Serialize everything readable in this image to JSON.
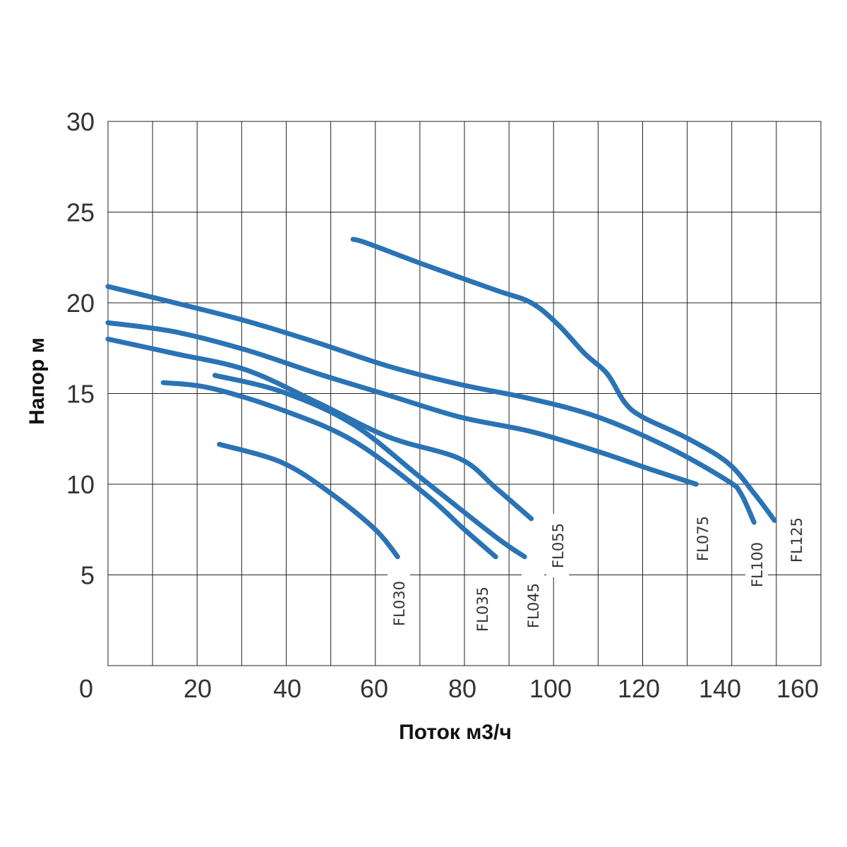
{
  "chart_data": {
    "type": "line",
    "xlabel": "Поток м3/ч",
    "ylabel": "Напор м",
    "xlim": [
      0,
      160
    ],
    "ylim": [
      0,
      30
    ],
    "x_ticks": [
      "0",
      "20",
      "40",
      "60",
      "80",
      "100",
      "120",
      "140",
      "160"
    ],
    "y_ticks": [
      "5",
      "10",
      "15",
      "20",
      "25",
      "30"
    ],
    "grid": true,
    "line_color": "#2a73b5",
    "series": [
      {
        "name": "FL030",
        "points": [
          [
            25,
            12.2
          ],
          [
            39,
            11.2
          ],
          [
            50,
            9.5
          ],
          [
            60,
            7.5
          ],
          [
            65,
            6.0
          ]
        ]
      },
      {
        "name": "FL035",
        "points": [
          [
            12.4,
            15.6
          ],
          [
            23,
            15.3
          ],
          [
            39,
            14.1
          ],
          [
            55,
            12.4
          ],
          [
            71,
            9.5
          ],
          [
            80,
            7.5
          ],
          [
            87,
            6.0
          ]
        ]
      },
      {
        "name": "FL045",
        "points": [
          [
            24,
            16.0
          ],
          [
            39,
            15.1
          ],
          [
            55,
            13.3
          ],
          [
            71,
            10.2
          ],
          [
            87,
            7.1
          ],
          [
            93.5,
            6.0
          ]
        ]
      },
      {
        "name": "FL055",
        "points": [
          [
            0,
            18.0
          ],
          [
            15,
            17.2
          ],
          [
            31,
            16.3
          ],
          [
            47,
            14.5
          ],
          [
            63,
            12.6
          ],
          [
            79,
            11.4
          ],
          [
            87,
            9.8
          ],
          [
            95,
            8.1
          ]
        ]
      },
      {
        "name": "FL075",
        "points": [
          [
            0,
            18.9
          ],
          [
            15,
            18.4
          ],
          [
            31,
            17.4
          ],
          [
            47,
            16.1
          ],
          [
            63,
            14.9
          ],
          [
            79,
            13.7
          ],
          [
            95,
            12.9
          ],
          [
            110,
            11.8
          ],
          [
            122,
            10.8
          ],
          [
            132,
            10.0
          ]
        ]
      },
      {
        "name": "FL100",
        "points": [
          [
            0,
            20.9
          ],
          [
            15,
            20.0
          ],
          [
            31,
            19.0
          ],
          [
            47,
            17.8
          ],
          [
            63,
            16.5
          ],
          [
            79,
            15.5
          ],
          [
            95,
            14.7
          ],
          [
            110,
            13.7
          ],
          [
            126,
            12.0
          ],
          [
            139,
            10.2
          ],
          [
            142,
            9.5
          ],
          [
            145,
            7.9
          ]
        ]
      },
      {
        "name": "FL125",
        "points": [
          [
            55,
            23.5
          ],
          [
            58,
            23.3
          ],
          [
            71,
            22.1
          ],
          [
            87,
            20.7
          ],
          [
            95,
            20.0
          ],
          [
            101,
            18.8
          ],
          [
            107,
            17.2
          ],
          [
            112,
            16.1
          ],
          [
            116,
            14.5
          ],
          [
            120,
            13.7
          ],
          [
            129.5,
            12.6
          ],
          [
            139,
            11.2
          ],
          [
            145,
            9.5
          ],
          [
            149.6,
            8.0
          ]
        ]
      }
    ]
  }
}
